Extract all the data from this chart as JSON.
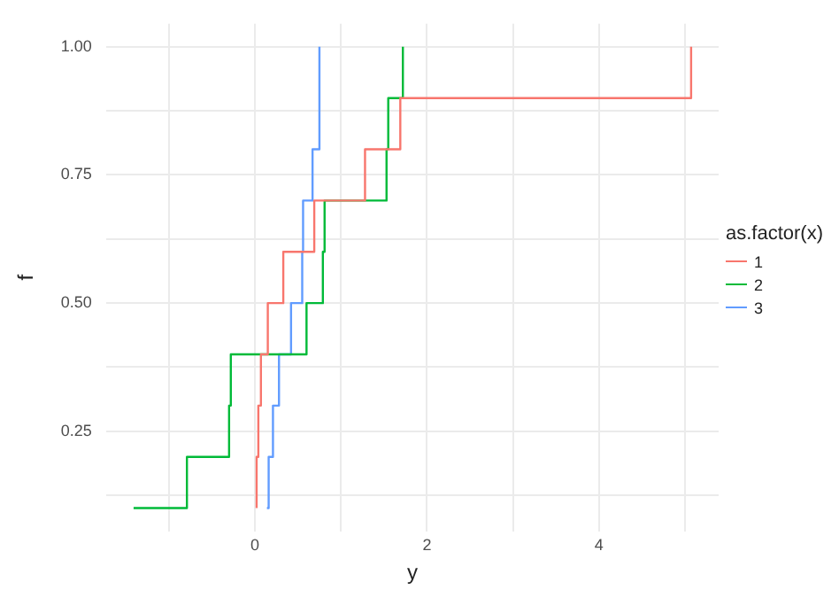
{
  "chart_data": {
    "type": "step",
    "xlabel": "y",
    "ylabel": "f",
    "legend_title": "as.factor(x)",
    "legend": "right",
    "grid": true,
    "marker": "none",
    "line_style": "solid",
    "xlim": [
      -1.73,
      5.39
    ],
    "ylim": [
      0.055,
      1.045
    ],
    "xticks": [
      {
        "value": -1,
        "label": null
      },
      {
        "value": 0,
        "label": "0"
      },
      {
        "value": 1,
        "label": null
      },
      {
        "value": 2,
        "label": "2"
      },
      {
        "value": 3,
        "label": null
      },
      {
        "value": 4,
        "label": "4"
      },
      {
        "value": 5,
        "label": null
      }
    ],
    "yticks": [
      {
        "value": 0.125,
        "label": null
      },
      {
        "value": 0.25,
        "label": "0.25"
      },
      {
        "value": 0.375,
        "label": null
      },
      {
        "value": 0.5,
        "label": "0.50"
      },
      {
        "value": 0.625,
        "label": null
      },
      {
        "value": 0.75,
        "label": "0.75"
      },
      {
        "value": 0.875,
        "label": null
      },
      {
        "value": 1,
        "label": "1.00"
      }
    ],
    "series": [
      {
        "name": "1",
        "color": "#f8766d",
        "x": [
          0.02,
          0.02,
          0.04,
          0.07,
          0.15,
          0.33,
          0.69,
          1.28,
          1.69,
          5.07
        ],
        "values": [
          0.1,
          0.2,
          0.3,
          0.4,
          0.5,
          0.6,
          0.7,
          0.8,
          0.9,
          1.0
        ]
      },
      {
        "name": "2",
        "color": "#00ba38",
        "x": [
          -1.41,
          -0.79,
          -0.3,
          -0.28,
          0.6,
          0.79,
          0.81,
          1.53,
          1.55,
          1.72
        ],
        "values": [
          0.1,
          0.2,
          0.3,
          0.4,
          0.5,
          0.6,
          0.7,
          0.8,
          0.9,
          1.0
        ]
      },
      {
        "name": "3",
        "color": "#619cff",
        "x": [
          0.14,
          0.16,
          0.21,
          0.28,
          0.42,
          0.55,
          0.56,
          0.67,
          0.75,
          0.75
        ],
        "values": [
          0.1,
          0.2,
          0.3,
          0.4,
          0.5,
          0.6,
          0.7,
          0.8,
          0.9,
          1.0
        ]
      }
    ]
  }
}
